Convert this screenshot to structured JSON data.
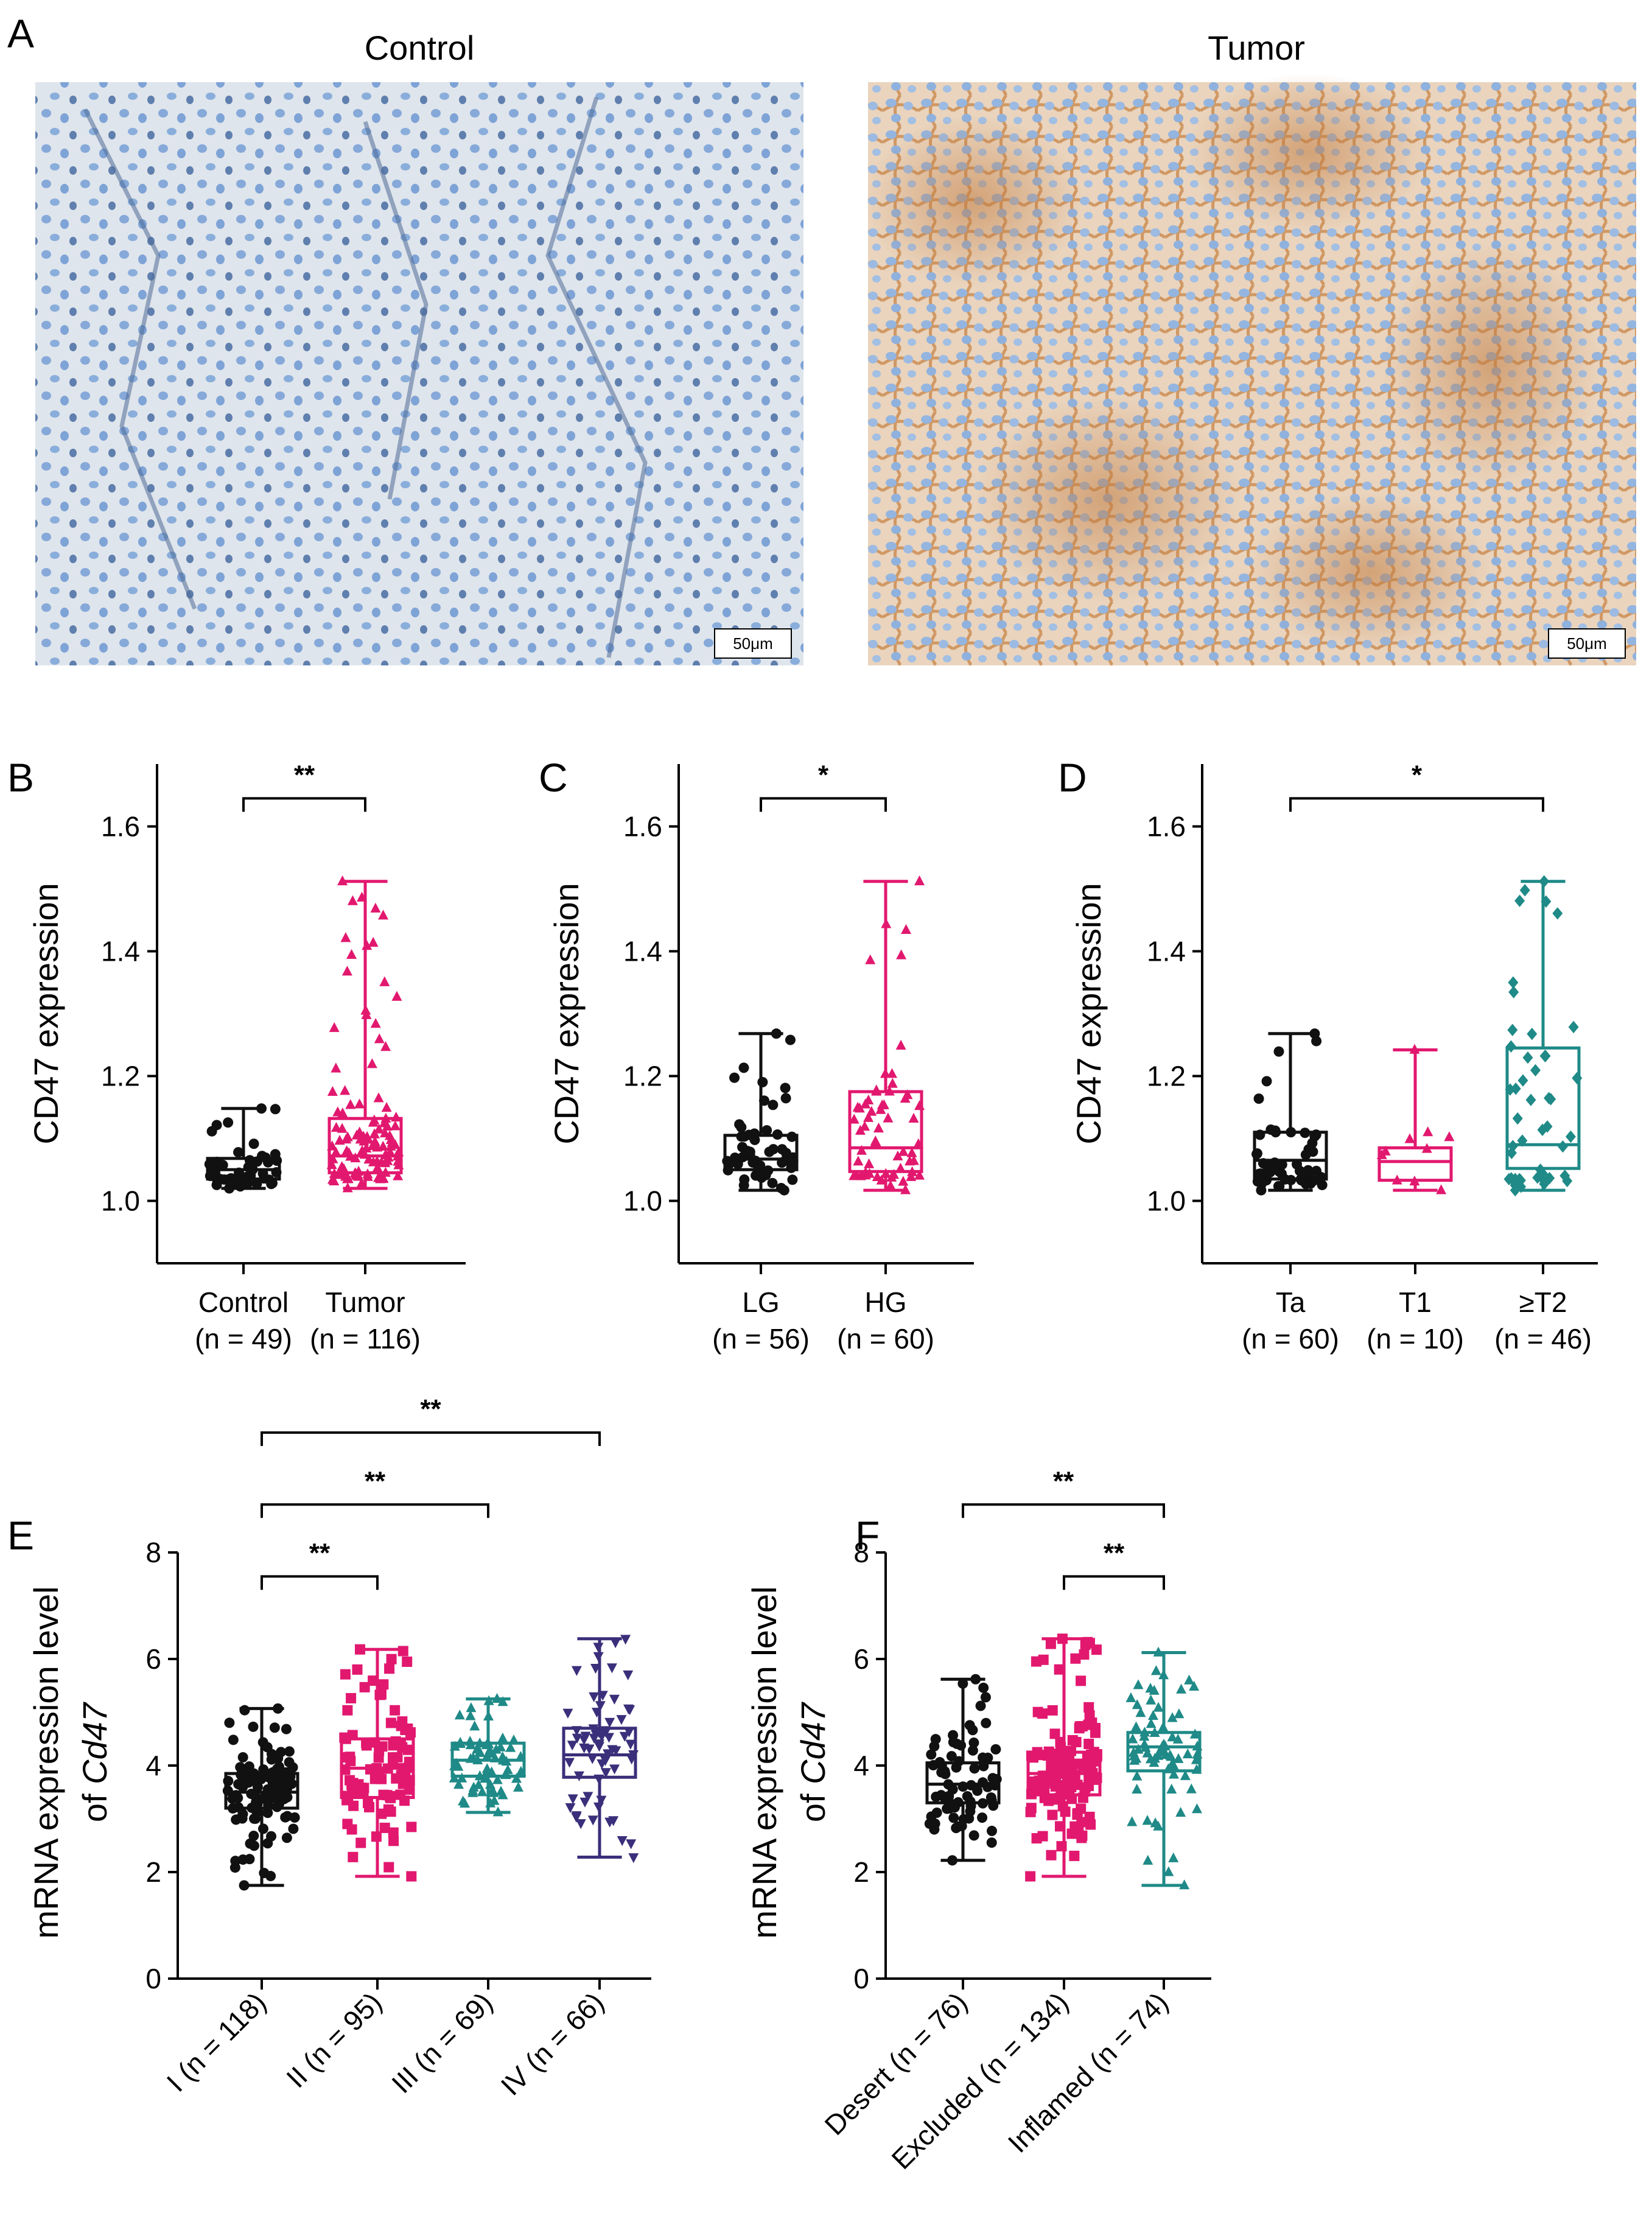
{
  "panel_labels": [
    "A",
    "B",
    "C",
    "D",
    "E",
    "F"
  ],
  "micrographs": {
    "control_title": "Control",
    "tumor_title": "Tumor",
    "scale_bar": "50μm"
  },
  "colors": {
    "black": "#111111",
    "pink": "#e2186f",
    "teal": "#1f8a87",
    "navy": "#3a2f7a",
    "control_tissue": "#dde4ec",
    "control_nuclei": "#7da4d8",
    "tumor_tissue": "#e9cfb6",
    "tumor_stain": "#c98a4e",
    "tumor_nuclei": "#8fb2de"
  },
  "chart_data": [
    {
      "id": "B",
      "type": "box",
      "title": "",
      "ylabel": "CD47 expression",
      "xlabel": "",
      "ylim": [
        0.9,
        1.7
      ],
      "yticks": [
        1.0,
        1.2,
        1.4,
        1.6
      ],
      "ytick_labels": [
        "1.0",
        "1.2",
        "1.4",
        "1.6"
      ],
      "groups": [
        {
          "name": "Control",
          "n_label": "(n = 49)",
          "n": 49,
          "color": "#111111",
          "marker": "circle",
          "min": 1.02,
          "q1": 1.035,
          "median": 1.05,
          "q3": 1.068,
          "max": 1.148
        },
        {
          "name": "Tumor",
          "n_label": "(n = 116)",
          "n": 116,
          "color": "#e2186f",
          "marker": "triangle",
          "min": 1.02,
          "q1": 1.045,
          "median": 1.072,
          "q3": 1.132,
          "max": 1.512
        }
      ],
      "comparisons": [
        {
          "from": 0,
          "to": 1,
          "y": 1.645,
          "label": "**"
        }
      ]
    },
    {
      "id": "C",
      "type": "box",
      "title": "",
      "ylabel": "CD47 expression",
      "xlabel": "",
      "ylim": [
        0.9,
        1.7
      ],
      "yticks": [
        1.0,
        1.2,
        1.4,
        1.6
      ],
      "ytick_labels": [
        "1.0",
        "1.2",
        "1.4",
        "1.6"
      ],
      "groups": [
        {
          "name": "LG",
          "n_label": "(n = 56)",
          "n": 56,
          "color": "#111111",
          "marker": "circle",
          "min": 1.017,
          "q1": 1.05,
          "median": 1.067,
          "q3": 1.105,
          "max": 1.268
        },
        {
          "name": "HG",
          "n_label": "(n = 60)",
          "n": 60,
          "color": "#e2186f",
          "marker": "triangle",
          "min": 1.017,
          "q1": 1.047,
          "median": 1.085,
          "q3": 1.175,
          "max": 1.512
        }
      ],
      "comparisons": [
        {
          "from": 0,
          "to": 1,
          "y": 1.645,
          "label": "*"
        }
      ]
    },
    {
      "id": "D",
      "type": "box",
      "title": "",
      "ylabel": "CD47 expression",
      "xlabel": "",
      "ylim": [
        0.9,
        1.7
      ],
      "yticks": [
        1.0,
        1.2,
        1.4,
        1.6
      ],
      "ytick_labels": [
        "1.0",
        "1.2",
        "1.4",
        "1.6"
      ],
      "groups": [
        {
          "name": "Ta",
          "n_label": "(n = 60)",
          "n": 60,
          "color": "#111111",
          "marker": "circle",
          "min": 1.017,
          "q1": 1.035,
          "median": 1.065,
          "q3": 1.11,
          "max": 1.268
        },
        {
          "name": "T1",
          "n_label": "(n = 10)",
          "n": 10,
          "color": "#e2186f",
          "marker": "triangle",
          "min": 1.017,
          "q1": 1.033,
          "median": 1.063,
          "q3": 1.085,
          "max": 1.242
        },
        {
          "name": "≥T2",
          "n_label": "(n = 46)",
          "n": 46,
          "color": "#1f8a87",
          "marker": "diamond",
          "min": 1.017,
          "q1": 1.052,
          "median": 1.09,
          "q3": 1.245,
          "max": 1.512
        }
      ],
      "comparisons": [
        {
          "from": 0,
          "to": 2,
          "y": 1.645,
          "label": "*"
        }
      ]
    },
    {
      "id": "E",
      "type": "box",
      "title": "",
      "ylabel": "mRNA expression level",
      "ylabel2_prefix": "of ",
      "ylabel2_italic": "Cd47",
      "xlabel": "",
      "ylim": [
        0,
        8
      ],
      "yticks": [
        0,
        2,
        4,
        6,
        8
      ],
      "ytick_labels": [
        "0",
        "2",
        "4",
        "6",
        "8"
      ],
      "rotated_labels": true,
      "groups": [
        {
          "name": "I (n = 118)",
          "n": 118,
          "color": "#111111",
          "marker": "circle",
          "min": 1.75,
          "q1": 3.2,
          "median": 3.5,
          "q3": 3.85,
          "max": 5.07
        },
        {
          "name": "II (n = 95)",
          "n": 95,
          "color": "#e2186f",
          "marker": "square",
          "min": 1.92,
          "q1": 3.4,
          "median": 3.95,
          "q3": 4.5,
          "max": 6.18
        },
        {
          "name": "III (n = 69)",
          "n": 69,
          "color": "#1f8a87",
          "marker": "triangle",
          "min": 3.12,
          "q1": 3.8,
          "median": 4.1,
          "q3": 4.42,
          "max": 5.25
        },
        {
          "name": "IV (n = 66)",
          "n": 66,
          "color": "#3a2f7a",
          "marker": "triangle-down",
          "min": 2.28,
          "q1": 3.78,
          "median": 4.2,
          "q3": 4.7,
          "max": 6.38
        }
      ],
      "comparisons": [
        {
          "from": 0,
          "to": 1,
          "y": 7.55,
          "label": "**"
        },
        {
          "from": 0,
          "to": 2,
          "y": 8.9,
          "label": "**"
        },
        {
          "from": 0,
          "to": 3,
          "y": 10.25,
          "label": "**"
        }
      ]
    },
    {
      "id": "F",
      "type": "box",
      "title": "",
      "ylabel": "mRNA expression level",
      "ylabel2_prefix": "of ",
      "ylabel2_italic": "Cd47",
      "xlabel": "",
      "ylim": [
        0,
        8
      ],
      "yticks": [
        0,
        2,
        4,
        6,
        8
      ],
      "ytick_labels": [
        "0",
        "2",
        "4",
        "6",
        "8"
      ],
      "rotated_labels": true,
      "groups": [
        {
          "name": "Desert (n = 76)",
          "n": 76,
          "color": "#111111",
          "marker": "circle",
          "min": 2.22,
          "q1": 3.3,
          "median": 3.65,
          "q3": 4.05,
          "max": 5.62
        },
        {
          "name": "Excluded (n = 134)",
          "n": 134,
          "color": "#e2186f",
          "marker": "square",
          "min": 1.92,
          "q1": 3.45,
          "median": 3.85,
          "q3": 4.25,
          "max": 6.38
        },
        {
          "name": "Inflamed (n = 74)",
          "n": 74,
          "color": "#1f8a87",
          "marker": "triangle",
          "min": 1.75,
          "q1": 3.9,
          "median": 4.35,
          "q3": 4.62,
          "max": 6.12
        }
      ],
      "comparisons": [
        {
          "from": 0,
          "to": 2,
          "y": 8.9,
          "label": "**"
        },
        {
          "from": 1,
          "to": 2,
          "y": 7.55,
          "label": "**"
        }
      ]
    }
  ]
}
